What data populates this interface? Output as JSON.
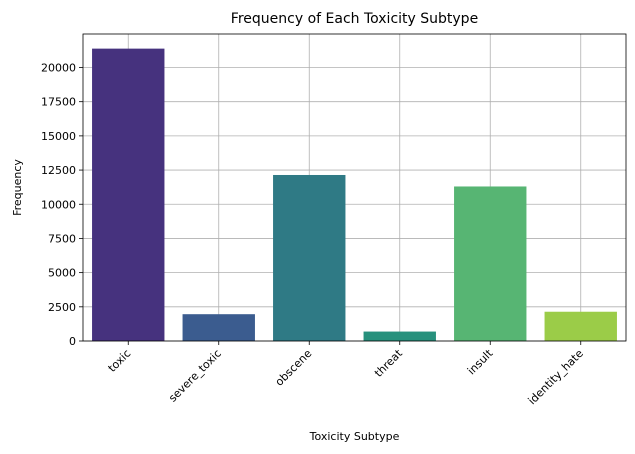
{
  "chart_data": {
    "type": "bar",
    "title": "Frequency of Each Toxicity Subtype",
    "xlabel": "Toxicity Subtype",
    "ylabel": "Frequency",
    "categories": [
      "toxic",
      "severe_toxic",
      "obscene",
      "threat",
      "insult",
      "identity_hate"
    ],
    "values": [
      21380,
      1960,
      12140,
      690,
      11300,
      2140
    ],
    "colors": [
      "#46327e",
      "#3b5c8f",
      "#2f7a85",
      "#27917d",
      "#57b573",
      "#9bcc48"
    ],
    "ylim": [
      0,
      22450
    ],
    "yticks": [
      0,
      2500,
      5000,
      7500,
      10000,
      12500,
      15000,
      17500,
      20000
    ],
    "ytick_labels": [
      "0",
      "2500",
      "5000",
      "7500",
      "10000",
      "12500",
      "15000",
      "17500",
      "20000"
    ],
    "grid": true,
    "xtick_rotation": 45
  }
}
